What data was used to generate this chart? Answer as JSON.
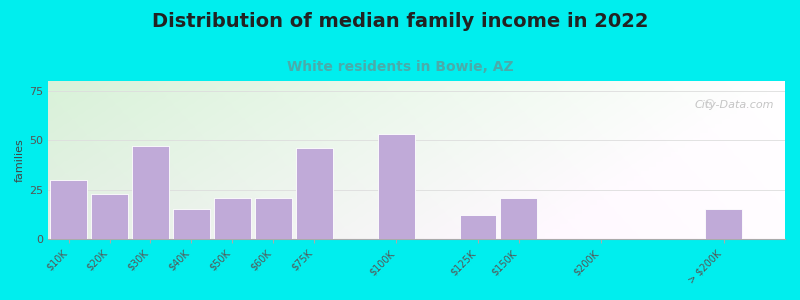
{
  "title": "Distribution of median family income in 2022",
  "subtitle": "White residents in Bowie, AZ",
  "title_fontsize": 14,
  "subtitle_fontsize": 10,
  "title_color": "#222222",
  "subtitle_color": "#4aabaa",
  "background_color": "#00eeee",
  "bar_color": "#c0aad8",
  "bar_edgecolor": "#ffffff",
  "ylabel": "families",
  "ylabel_fontsize": 8,
  "yticks": [
    0,
    25,
    50,
    75
  ],
  "ylim": [
    0,
    80
  ],
  "categories": [
    "$10K",
    "$20K",
    "$30K",
    "$40K",
    "$50K",
    "$60K",
    "$75K",
    "$100K",
    "$125K",
    "$150K",
    "$200K",
    "> $200K"
  ],
  "values": [
    30,
    23,
    47,
    15,
    21,
    21,
    46,
    53,
    12,
    21,
    0,
    15
  ],
  "watermark": "City-Data.com",
  "bar_positions": [
    0,
    1,
    2,
    3,
    4,
    5,
    6,
    8,
    10,
    11,
    13,
    16
  ],
  "bar_width": 0.9,
  "xlim_left": -0.5,
  "xlim_right": 17.5
}
